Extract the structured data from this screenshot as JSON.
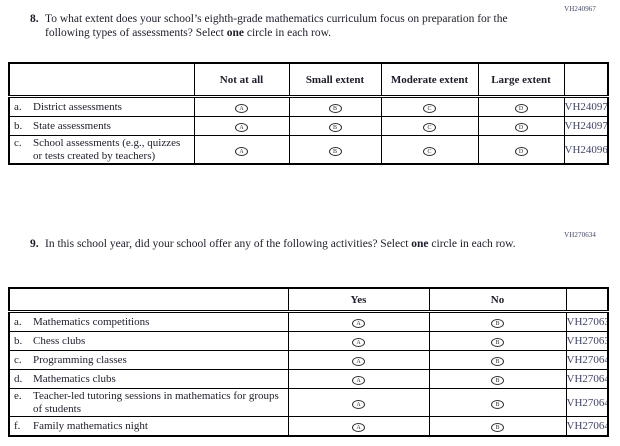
{
  "document": {
    "q8": {
      "number": "8.",
      "text": "To what extent does your school’s eighth-grade mathematics curriculum focus on preparation for the following types of assessments? Select ",
      "bold_word": "one",
      "text_after": " circle in each row.",
      "code": "VH240967"
    },
    "q9": {
      "number": "9.",
      "text": "In this school year, did your school offer any of the following activities? Select ",
      "bold_word": "one",
      "text_after": " circle in each row.",
      "code": "VH270634"
    },
    "table1": {
      "column_headers": [
        "",
        "Not at all",
        "Small extent",
        "Moderate extent",
        "Large extent",
        ""
      ],
      "option_letters": [
        "A",
        "B",
        "C",
        "D"
      ],
      "rows": [
        {
          "letter": "a.",
          "label": "District assessments",
          "code": "VH240970"
        },
        {
          "letter": "b.",
          "label": "State assessments",
          "code": "VH240971"
        },
        {
          "letter": "c.",
          "label": "School assessments (e.g., quizzes or tests created by teachers)",
          "code": "VH240969"
        }
      ]
    },
    "table2": {
      "column_headers": [
        "",
        "Yes",
        "No",
        ""
      ],
      "option_letters": [
        "A",
        "B"
      ],
      "rows": [
        {
          "letter": "a.",
          "label": "Mathematics competitions",
          "code": "VH270637"
        },
        {
          "letter": "b.",
          "label": "Chess clubs",
          "code": "VH270638"
        },
        {
          "letter": "c.",
          "label": "Programming classes",
          "code": "VH270640"
        },
        {
          "letter": "d.",
          "label": "Mathematics clubs",
          "code": "VH270641"
        },
        {
          "letter": "e.",
          "label": "Teacher-led tutoring sessions in mathematics for groups of students",
          "code": "VH270643"
        },
        {
          "letter": "f.",
          "label": "Family mathematics night",
          "code": "VH270645"
        }
      ]
    },
    "colors": {
      "text": "#1d1d2b",
      "code_text": "#3f4468",
      "table_border": "#000000"
    }
  }
}
